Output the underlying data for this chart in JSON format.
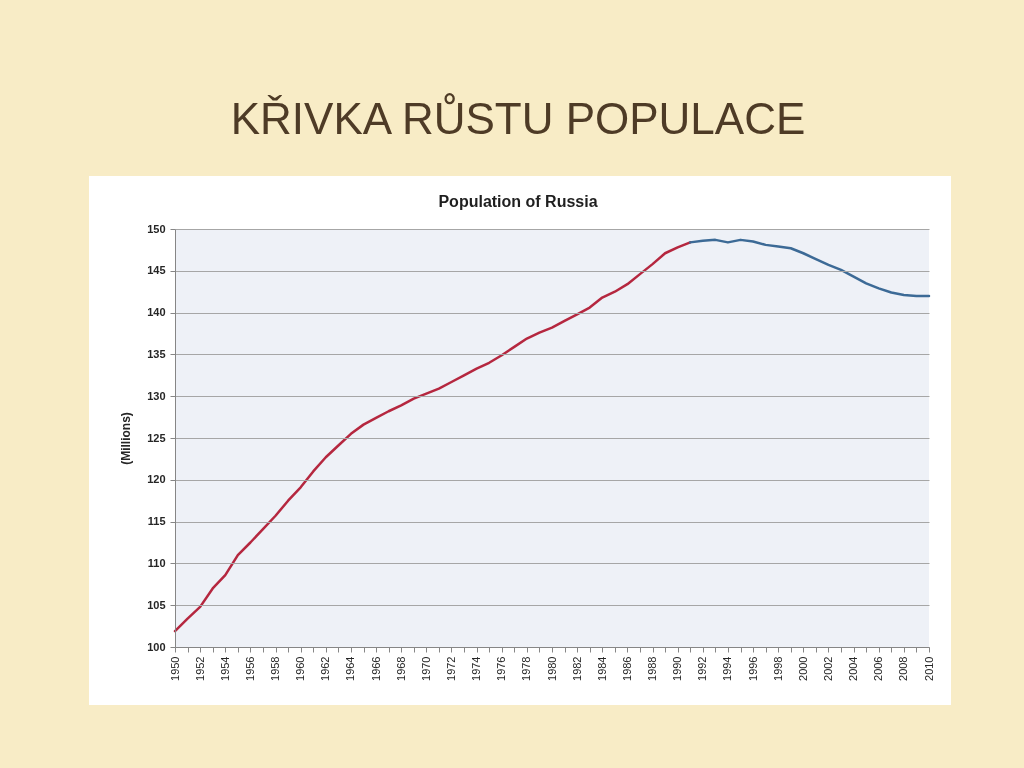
{
  "chart_data": {
    "type": "line",
    "title": "KŘIVKA RŮSTU POPULACE",
    "subtitle": "Population of Russia",
    "ylabel": "(Millions)",
    "series": [
      {
        "color": "#b5273f",
        "x": [
          1950,
          1951,
          1952,
          1953,
          1954,
          1955,
          1956,
          1957,
          1958,
          1959,
          1960,
          1961,
          1962,
          1963,
          1964,
          1965,
          1966,
          1967,
          1968,
          1969,
          1970,
          1971,
          1972,
          1973,
          1974,
          1975,
          1976,
          1977,
          1978,
          1979,
          1980,
          1981,
          1982,
          1983,
          1984,
          1985,
          1986,
          1987,
          1988,
          1989,
          1990,
          1991
        ],
        "values": [
          101.9,
          103.4,
          104.8,
          107.0,
          108.6,
          111.0,
          112.5,
          114.1,
          115.7,
          117.5,
          119.1,
          121.0,
          122.7,
          124.1,
          125.5,
          126.6,
          127.4,
          128.2,
          128.9,
          129.7,
          130.3,
          130.9,
          131.7,
          132.5,
          133.3,
          134.0,
          134.9,
          135.9,
          136.9,
          137.6,
          138.2,
          139.0,
          139.8,
          140.6,
          141.8,
          142.5,
          143.4,
          144.6,
          145.8,
          147.1,
          147.8,
          148.4
        ]
      },
      {
        "color": "#3c6a96",
        "x": [
          1991,
          1992,
          1993,
          1994,
          1995,
          1996,
          1997,
          1998,
          1999,
          2000,
          2001,
          2002,
          2003,
          2004,
          2005,
          2006,
          2007,
          2008,
          2009,
          2010
        ],
        "values": [
          148.4,
          148.6,
          148.7,
          148.4,
          148.7,
          148.5,
          148.1,
          147.9,
          147.7,
          147.1,
          146.4,
          145.7,
          145.1,
          144.3,
          143.5,
          142.9,
          142.4,
          142.1,
          142.0,
          142.0
        ]
      }
    ],
    "xlim": [
      1950,
      2010
    ],
    "xticks": [
      1950,
      {
        "value": 1951,
        "label": null
      },
      1952,
      {
        "value": 1953,
        "label": null
      },
      1954,
      {
        "value": 1955,
        "label": null
      },
      1956,
      {
        "value": 1957,
        "label": null
      },
      1958,
      {
        "value": 1959,
        "label": null
      },
      1960,
      {
        "value": 1961,
        "label": null
      },
      1962,
      {
        "value": 1963,
        "label": null
      },
      1964,
      {
        "value": 1965,
        "label": null
      },
      1966,
      {
        "value": 1967,
        "label": null
      },
      1968,
      {
        "value": 1969,
        "label": null
      },
      1970,
      {
        "value": 1971,
        "label": null
      },
      1972,
      {
        "value": 1973,
        "label": null
      },
      1974,
      {
        "value": 1975,
        "label": null
      },
      1976,
      {
        "value": 1977,
        "label": null
      },
      1978,
      {
        "value": 1979,
        "label": null
      },
      1980,
      {
        "value": 1981,
        "label": null
      },
      1982,
      {
        "value": 1983,
        "label": null
      },
      1984,
      {
        "value": 1985,
        "label": null
      },
      1986,
      {
        "value": 1987,
        "label": null
      },
      1988,
      {
        "value": 1989,
        "label": null
      },
      1990,
      {
        "value": 1991,
        "label": null
      },
      1992,
      {
        "value": 1993,
        "label": null
      },
      1994,
      {
        "value": 1995,
        "label": null
      },
      1996,
      {
        "value": 1997,
        "label": null
      },
      1998,
      {
        "value": 1999,
        "label": null
      },
      2000,
      {
        "value": 2001,
        "label": null
      },
      2002,
      {
        "value": 2003,
        "label": null
      },
      2004,
      {
        "value": 2005,
        "label": null
      },
      2006,
      {
        "value": 2007,
        "label": null
      },
      2008,
      {
        "value": 2009,
        "label": null
      },
      2010
    ],
    "ylim": [
      100,
      150
    ],
    "yticks": [
      100,
      105,
      110,
      115,
      120,
      125,
      130,
      135,
      140,
      145,
      150
    ],
    "grid": "y",
    "marker": "none",
    "line_style": "solid"
  }
}
